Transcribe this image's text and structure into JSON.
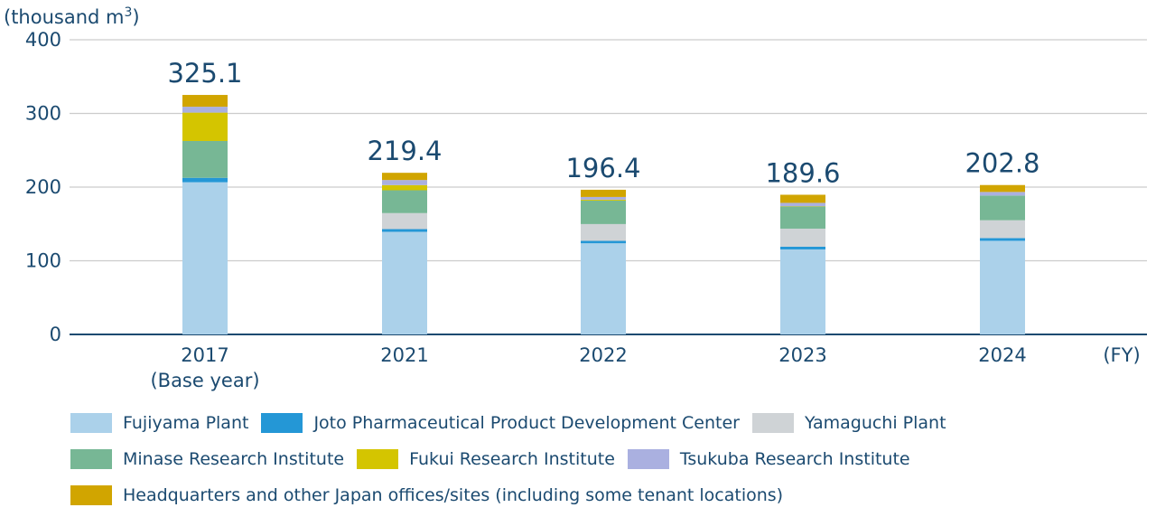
{
  "chart_data": {
    "type": "bar",
    "stacked": true,
    "ylabel": "(thousand m",
    "ylabel_sup": "3",
    "ylabel_end": ")",
    "xlabel": "(FY)",
    "ylim": [
      0,
      400
    ],
    "yticks": [
      0,
      100,
      200,
      300,
      400
    ],
    "grid": true,
    "categories": [
      "2017",
      "2021",
      "2022",
      "2023",
      "2024"
    ],
    "category_sublabels": [
      "(Base year)",
      "",
      "",
      "",
      ""
    ],
    "totals": [
      "325.1",
      "219.4",
      "196.4",
      "189.6",
      "202.8"
    ],
    "series": [
      {
        "name": "Fujiyama Plant",
        "color": "#abd1ea",
        "values": [
          206.6,
          139.3,
          123.7,
          115.4,
          127.1
        ]
      },
      {
        "name": "Joto Pharmaceutical Product Development Center",
        "color": "#2497d6",
        "values": [
          6,
          3.7,
          3.3,
          3.7,
          3.7
        ]
      },
      {
        "name": "Yamaguchi Plant",
        "color": "#cfd3d6",
        "values": [
          0,
          21.7,
          22.8,
          24.5,
          24.2
        ]
      },
      {
        "name": "Minase Research Institute",
        "color": "#77b795",
        "values": [
          50,
          31,
          31.9,
          30,
          33.5
        ]
      },
      {
        "name": "Fukui Research Institute",
        "color": "#d4c500",
        "values": [
          38.5,
          7,
          1.2,
          0.5,
          0
        ]
      },
      {
        "name": "Tsukuba Research Institute",
        "color": "#aab0e0",
        "values": [
          8,
          6.9,
          3.7,
          4.5,
          4.9
        ]
      },
      {
        "name": "Headquarters and other Japan offices/sites (including some tenant locations)",
        "color": "#d1a500",
        "values": [
          16,
          9.8,
          9.8,
          11,
          9.4
        ]
      }
    ],
    "legend_placement": "bottom"
  }
}
